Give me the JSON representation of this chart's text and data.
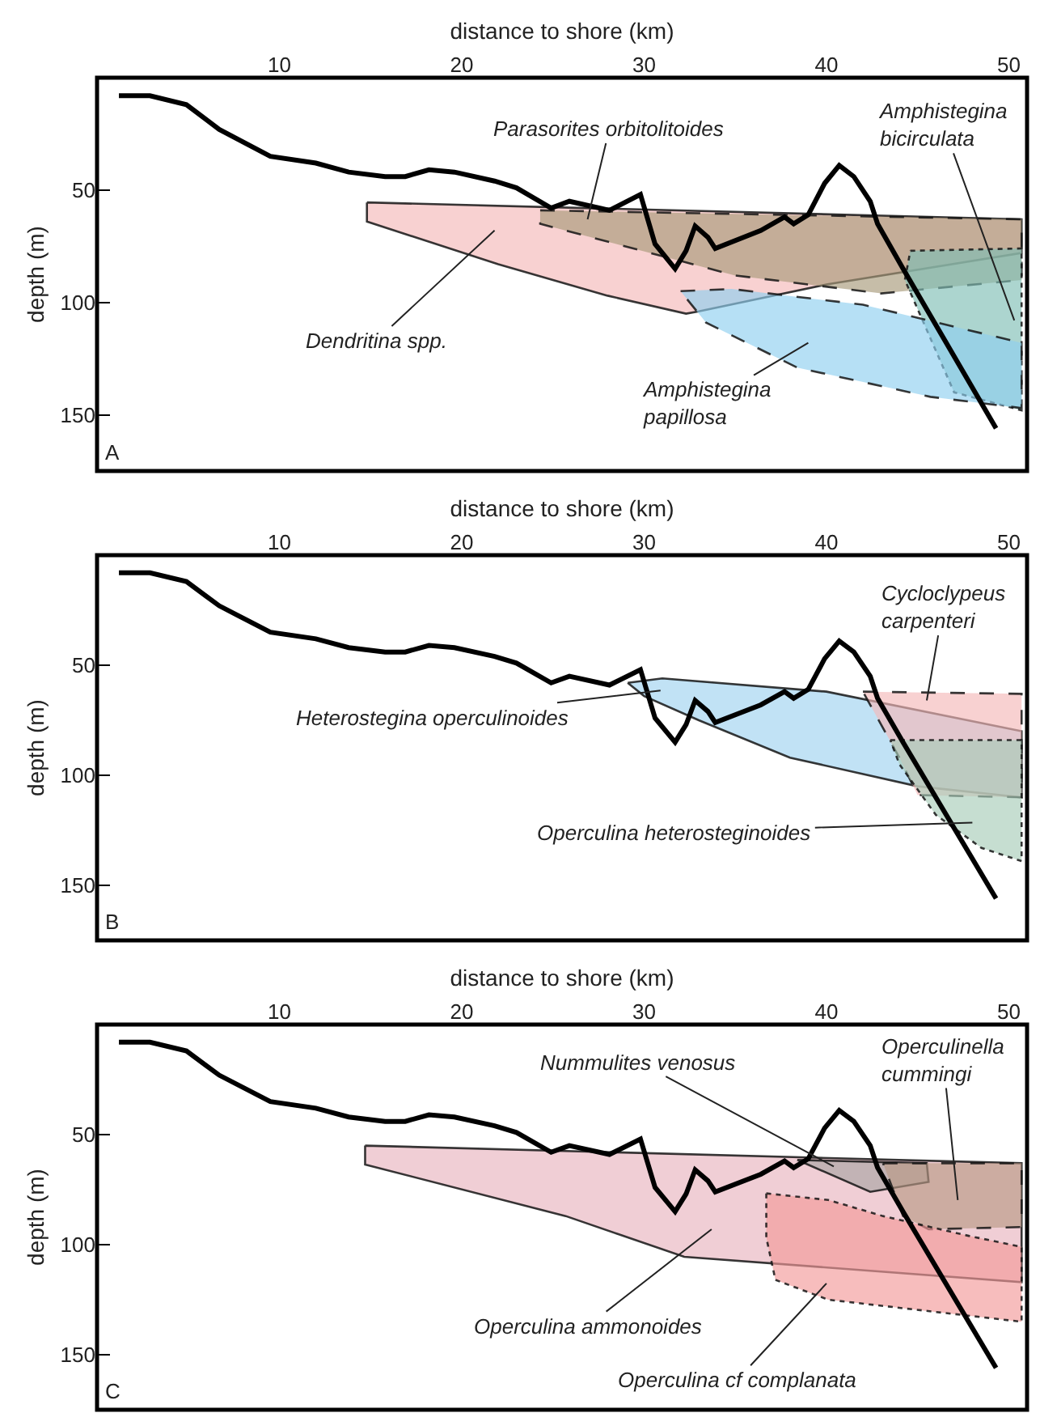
{
  "chart_data": [
    {
      "type": "area",
      "xlabel": "distance to shore (km)",
      "ylabel": "depth (m)",
      "xlim": [
        0,
        51
      ],
      "ylim": [
        175,
        0
      ],
      "xticks": [
        10,
        20,
        30,
        40,
        50
      ],
      "yticks": [
        50,
        100,
        150
      ],
      "series": [
        {
          "type": "line",
          "color": "#000000",
          "line_style": "solid",
          "x": [
            1.2,
            2.9,
            4.9,
            6.7,
            9.5,
            12,
            13.8,
            15.8,
            16.9,
            18.2,
            19.6,
            21.8,
            23,
            24.9,
            25.9,
            28.1,
            29.8,
            30.6,
            31.7,
            32.3,
            32.8,
            33.5,
            33.9,
            36.4,
            37.7,
            38.2,
            39,
            39.9,
            40.7,
            41.5,
            42.4,
            42.8,
            44.2,
            49.3
          ],
          "values": [
            8,
            8,
            12,
            23,
            35,
            38,
            42,
            44,
            44,
            41,
            42,
            46,
            49,
            58,
            55,
            59,
            52,
            74,
            85,
            77,
            66,
            71,
            76,
            68,
            62,
            65,
            61,
            47,
            39,
            44,
            55,
            65,
            85,
            156
          ]
        },
        {
          "color": "#f4b8b8",
          "line_style": "solid",
          "x": [
            14.8,
            50.7,
            50.7,
            40,
            33,
            32.3,
            28,
            22,
            14.8,
            14.8
          ],
          "values": [
            55.5,
            63,
            78,
            92,
            104,
            105,
            97,
            83,
            64,
            55.5
          ]
        },
        {
          "color": "#a89a7a",
          "line_style": "dashed",
          "x": [
            24.3,
            50.7,
            50.7,
            43,
            35,
            24.3,
            24.3
          ],
          "values": [
            59,
            63,
            90,
            96,
            88,
            65,
            59
          ]
        },
        {
          "color": "#7fbfb6",
          "line_style": "dotted",
          "x": [
            44.6,
            50.7,
            50.7,
            47,
            44.3,
            44.6
          ],
          "values": [
            77,
            76,
            148,
            140,
            90,
            77
          ]
        },
        {
          "color": "#8fd0f0",
          "line_style": "dashed",
          "x": [
            32,
            34.8,
            42,
            50.7,
            50.7,
            45.7,
            38.4,
            33.4,
            32
          ],
          "values": [
            95,
            94,
            101,
            118,
            147,
            142,
            129,
            109,
            95
          ]
        }
      ],
      "annotations": [
        {
          "text": "Parasorites orbitolitoides",
          "x": 26.9,
          "y": 63
        },
        {
          "text": "Amphistegina bicirculata",
          "x": 50.3,
          "y": 108
        },
        "Dendritina spp.",
        "Amphistegina papillosa",
        "A"
      ]
    },
    {
      "type": "area",
      "xlabel": "distance to shore (km)",
      "ylabel": "depth (m)",
      "xlim": [
        0,
        51
      ],
      "ylim": [
        175,
        0
      ],
      "xticks": [
        10,
        20,
        30,
        40,
        50
      ],
      "yticks": [
        50,
        100,
        150
      ],
      "series": [
        {
          "type": "line",
          "color": "#000000",
          "line_style": "solid",
          "x": [
            1.2,
            2.9,
            4.9,
            6.7,
            9.5,
            12,
            13.8,
            15.8,
            16.9,
            18.2,
            19.6,
            21.8,
            23,
            24.9,
            25.9,
            28.1,
            29.8,
            30.6,
            31.7,
            32.3,
            32.8,
            33.5,
            33.9,
            36.4,
            37.7,
            38.2,
            39,
            39.9,
            40.7,
            41.5,
            42.4,
            42.8,
            44.2,
            49.3
          ],
          "values": [
            8,
            8,
            12,
            23,
            35,
            38,
            42,
            44,
            44,
            41,
            42,
            46,
            49,
            58,
            55,
            59,
            52,
            74,
            85,
            77,
            66,
            71,
            76,
            68,
            62,
            65,
            61,
            47,
            39,
            44,
            55,
            65,
            85,
            156
          ]
        },
        {
          "color": "#9fd3f0",
          "line_style": "solid",
          "x": [
            29.1,
            31,
            40,
            50.7,
            50.7,
            45,
            38,
            33,
            30,
            29.1
          ],
          "values": [
            58,
            56,
            62,
            80,
            110,
            105,
            92,
            75,
            64,
            58
          ]
        },
        {
          "color": "#f4b8b8",
          "line_style": "dashed",
          "x": [
            42,
            50.7,
            50.7,
            45,
            44,
            42
          ],
          "values": [
            62,
            63,
            110,
            109,
            92,
            62
          ]
        },
        {
          "color": "#a8cdb8",
          "line_style": "dotted",
          "x": [
            43.5,
            50.7,
            50.7,
            48.5,
            46,
            44,
            43.5
          ],
          "values": [
            84,
            84,
            139,
            133,
            118,
            95,
            84
          ]
        }
      ],
      "annotations": [
        {
          "text": "Cycloclypeus carpenteri",
          "x": 45.5,
          "y": 66
        },
        "Heterostegina operculinoides",
        "Operculina heterosteginoides",
        "B"
      ]
    },
    {
      "type": "area",
      "xlabel": "distance to shore (km)",
      "ylabel": "depth (m)",
      "xlim": [
        0,
        51
      ],
      "ylim": [
        175,
        0
      ],
      "xticks": [
        10,
        20,
        30,
        40,
        50
      ],
      "yticks": [
        50,
        100,
        150
      ],
      "series": [
        {
          "type": "line",
          "color": "#000000",
          "line_style": "solid",
          "x": [
            1.2,
            2.9,
            4.9,
            6.7,
            9.5,
            12,
            13.8,
            15.8,
            16.9,
            18.2,
            19.6,
            21.8,
            23,
            24.9,
            25.9,
            28.1,
            29.8,
            30.6,
            31.7,
            32.3,
            32.8,
            33.5,
            33.9,
            36.4,
            37.7,
            38.2,
            39,
            39.9,
            40.7,
            41.5,
            42.4,
            42.8,
            44.2,
            49.3
          ],
          "values": [
            8,
            8,
            12,
            23,
            35,
            38,
            42,
            44,
            44,
            41,
            42,
            46,
            49,
            58,
            55,
            59,
            52,
            74,
            85,
            77,
            66,
            71,
            76,
            68,
            62,
            65,
            61,
            47,
            39,
            44,
            55,
            65,
            85,
            156
          ]
        },
        {
          "color": "#e8b4bf",
          "line_style": "solid",
          "x": [
            14.7,
            50.7,
            50.7,
            32.2,
            25.7,
            14.7,
            14.7
          ],
          "values": [
            55,
            63,
            117,
            105.5,
            87,
            63.6,
            55
          ]
        },
        {
          "color": "#a9a4a4",
          "line_style": "solid",
          "x": [
            38.4,
            45.5,
            45.6,
            42.4,
            38.4
          ],
          "values": [
            61.5,
            63,
            71.5,
            76,
            61.5
          ]
        },
        {
          "color": "#b89a86",
          "line_style": "dashed",
          "x": [
            43.1,
            50.7,
            50.7,
            45.6,
            44.2,
            43.1
          ],
          "values": [
            63,
            63,
            92,
            93,
            87,
            63
          ]
        },
        {
          "color": "#f29a9a",
          "line_style": "dotted",
          "x": [
            36.7,
            40.1,
            43.1,
            47.8,
            50.7,
            50.7,
            40.1,
            37.2,
            36.7,
            36.7
          ],
          "values": [
            76.7,
            79.7,
            87,
            96,
            101,
            135,
            125,
            116,
            96.7,
            76.7
          ]
        }
      ],
      "annotations": [
        {
          "text": "Nummulites venosus",
          "x": 40.4,
          "y": 64.5
        },
        "Operculinella cummingi",
        "Operculina ammonoides",
        "Operculina cf complanata",
        "C"
      ]
    }
  ]
}
